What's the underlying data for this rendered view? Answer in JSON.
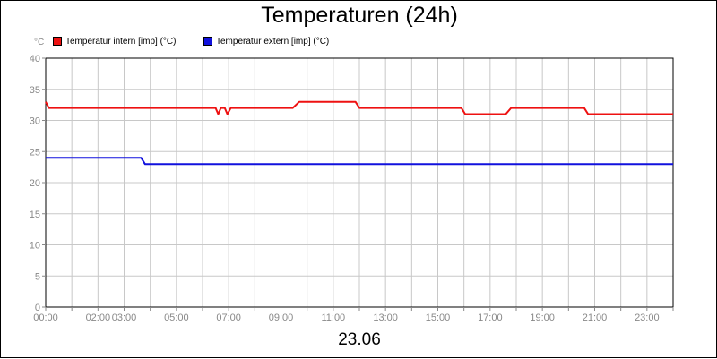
{
  "chart_data": {
    "type": "line",
    "title": "Temperaturen (24h)",
    "unit_label": "°C",
    "date_label": "23.06",
    "ylim": [
      0,
      40
    ],
    "y_ticks": [
      0,
      5,
      10,
      15,
      20,
      25,
      30,
      35,
      40
    ],
    "xlim": [
      0,
      24
    ],
    "x_tick_labels": [
      {
        "x": 0,
        "label": "00:00"
      },
      {
        "x": 2,
        "label": "02:00"
      },
      {
        "x": 3,
        "label": "03:00"
      },
      {
        "x": 5,
        "label": "05:00"
      },
      {
        "x": 7,
        "label": "07:00"
      },
      {
        "x": 9,
        "label": "09:00"
      },
      {
        "x": 11,
        "label": "11:00"
      },
      {
        "x": 13,
        "label": "13:00"
      },
      {
        "x": 15,
        "label": "15:00"
      },
      {
        "x": 17,
        "label": "17:00"
      },
      {
        "x": 19,
        "label": "19:00"
      },
      {
        "x": 21,
        "label": "21:00"
      },
      {
        "x": 23,
        "label": "23:00"
      }
    ],
    "grid": true,
    "legend_position": "top-left",
    "series": [
      {
        "name": "Temperatur intern [imp] (°C)",
        "color": "#ee1111",
        "points": [
          [
            0.0,
            33
          ],
          [
            0.12,
            32
          ],
          [
            6.5,
            32
          ],
          [
            6.6,
            31
          ],
          [
            6.7,
            32
          ],
          [
            6.85,
            32
          ],
          [
            6.95,
            31
          ],
          [
            7.08,
            32
          ],
          [
            9.45,
            32
          ],
          [
            9.7,
            33
          ],
          [
            11.85,
            33
          ],
          [
            12.0,
            32
          ],
          [
            15.9,
            32
          ],
          [
            16.05,
            31
          ],
          [
            17.6,
            31
          ],
          [
            17.8,
            32
          ],
          [
            20.6,
            32
          ],
          [
            20.75,
            31
          ],
          [
            24.0,
            31
          ]
        ]
      },
      {
        "name": "Temperatur extern [imp] (°C)",
        "color": "#1111dd",
        "points": [
          [
            0.0,
            24
          ],
          [
            3.65,
            24
          ],
          [
            3.8,
            23
          ],
          [
            24.0,
            23
          ]
        ]
      }
    ]
  }
}
